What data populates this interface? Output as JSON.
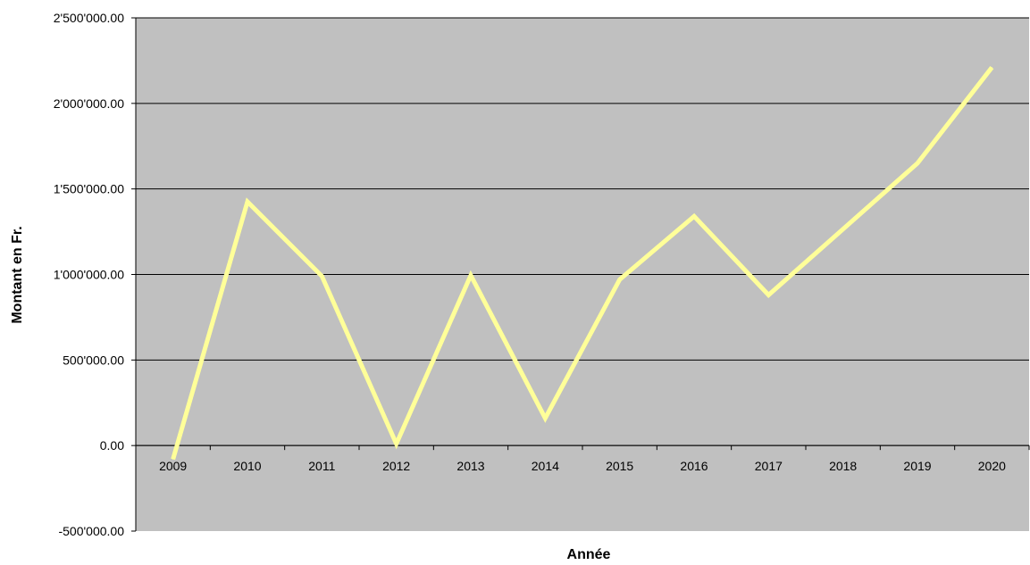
{
  "chart_data": {
    "type": "line",
    "title": "",
    "xlabel": "Année",
    "ylabel": "Montant en Fr.",
    "ylim": [
      -500000,
      2500000
    ],
    "yticks": [
      {
        "value": 2500000,
        "label": "2'500'000.00",
        "negative": false
      },
      {
        "value": 2000000,
        "label": "2'000'000.00",
        "negative": false
      },
      {
        "value": 1500000,
        "label": "1'500'000.00",
        "negative": false
      },
      {
        "value": 1000000,
        "label": "1'000'000.00",
        "negative": false
      },
      {
        "value": 500000,
        "label": "500'000.00",
        "negative": false
      },
      {
        "value": 0,
        "label": "0.00",
        "negative": false
      },
      {
        "value": -500000,
        "label": "-500'000.00",
        "negative": true
      }
    ],
    "categories": [
      "2009",
      "2010",
      "2011",
      "2012",
      "2013",
      "2014",
      "2015",
      "2016",
      "2017",
      "2018",
      "2019",
      "2020"
    ],
    "series": [
      {
        "values": [
          -80000,
          1425000,
          990000,
          10000,
          995000,
          160000,
          970000,
          1340000,
          880000,
          1265000,
          1650000,
          2210000
        ]
      }
    ],
    "grid": true,
    "legend": "none",
    "colors": {
      "plot_background": "#c0c0c0",
      "line": "#ffff99",
      "gridline": "#000000",
      "negative_label": "#ff0000"
    }
  }
}
